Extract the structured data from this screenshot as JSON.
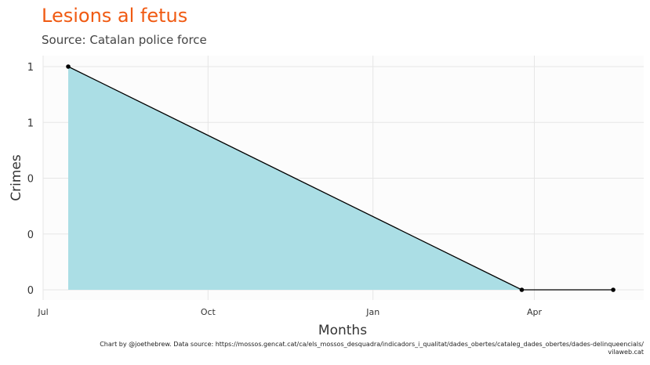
{
  "chart_data": {
    "type": "area",
    "title": "Lesions al fetus",
    "subtitle": "Source: Catalan police force",
    "xlabel": "Months",
    "ylabel": "Crimes",
    "caption_line1": "Chart by @joethebrew. Data source: https://mossos.gencat.cat/ca/els_mossos_desquadra/indicadors_i_qualitat/dades_obertes/cataleg_dades_obertes/dades-delinqueencials/",
    "caption_line2": "vilaweb.cat",
    "x_ticks": [
      "Jul",
      "Oct",
      "Jan",
      "Apr"
    ],
    "y_ticks": [
      "0",
      "0",
      "0",
      "1",
      "1"
    ],
    "xlim": [
      "2018-07-01",
      "2019-05-31"
    ],
    "ylim": [
      0,
      1
    ],
    "points": [
      {
        "x": "2018-07-15",
        "y": 1
      },
      {
        "x": "2019-03-25",
        "y": 0
      },
      {
        "x": "2019-05-15",
        "y": 0
      }
    ],
    "fill_color": "#abdee5",
    "line_color": "#000000",
    "grid": true
  }
}
